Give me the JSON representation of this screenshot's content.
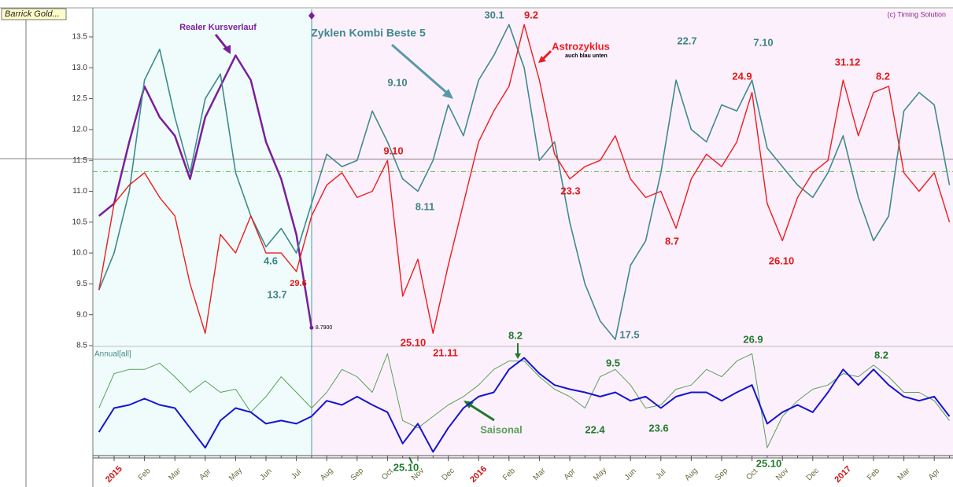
{
  "chart_data": {
    "type": "line",
    "title": "Barrick Gold...",
    "credit": "(c) Timing Solution",
    "panel_label": "Annual[all]",
    "categories": [
      null,
      "2015",
      null,
      "Feb",
      null,
      "Mar",
      null,
      "Apr",
      null,
      "May",
      null,
      "Jun",
      null,
      "Jul",
      null,
      "Aug",
      null,
      "Sep",
      null,
      "Oct",
      null,
      "Nov",
      null,
      "Dec",
      null,
      "2016",
      null,
      "Feb",
      null,
      "Mar",
      null,
      "Apr",
      null,
      "May",
      null,
      "Jun",
      null,
      "Jul",
      null,
      "Aug",
      null,
      "Sep",
      null,
      "Oct",
      null,
      "Nov",
      null,
      "Dec",
      null,
      "2017",
      null,
      "Feb",
      null,
      "Mar",
      null,
      "Apr",
      null
    ],
    "ylim": [
      8.5,
      13.5
    ],
    "yticks": [
      8.5,
      {
        "value": 9,
        "label": "9.0"
      },
      9.5,
      {
        "value": 10,
        "label": "10.0"
      },
      10.5,
      {
        "value": 11,
        "label": "11.0"
      },
      11.5,
      {
        "value": 12,
        "label": "12.0"
      },
      12.5,
      {
        "value": 13,
        "label": "13.0"
      },
      13.5
    ],
    "y2lim": [
      0,
      100
    ],
    "hlines": [
      {
        "value": 11.52,
        "color": "#8c7f7f",
        "dash": false
      },
      {
        "value": 11.32,
        "color": "#66bb55",
        "dash": true
      }
    ],
    "series": [
      {
        "name": "Realer Kursverlauf",
        "color": "#7a1f9a",
        "width": 2.5,
        "values": [
          10.6,
          10.8,
          11.8,
          12.7,
          12.2,
          11.9,
          11.2,
          12.2,
          12.7,
          13.2,
          12.8,
          11.8,
          11.2,
          10.3,
          8.79,
          null,
          null,
          null,
          null,
          null,
          null,
          null,
          null,
          null,
          null,
          null,
          null,
          null,
          null,
          null,
          null,
          null,
          null,
          null,
          null,
          null,
          null,
          null,
          null,
          null,
          null,
          null,
          null,
          null,
          null,
          null,
          null,
          null,
          null,
          null,
          null,
          null,
          null,
          null,
          null,
          null,
          null
        ],
        "value_labels": [
          null,
          null,
          null,
          null,
          null,
          null,
          null,
          null,
          null,
          null,
          null,
          null,
          null,
          null,
          "8.7900",
          null,
          null,
          null,
          null,
          null,
          null,
          null,
          null,
          null,
          null,
          null,
          null,
          null,
          null,
          null,
          null,
          null,
          null,
          null,
          null,
          null,
          null,
          null,
          null,
          null,
          null,
          null,
          null,
          null,
          null,
          null,
          null,
          null,
          null,
          null,
          null,
          null,
          null,
          null,
          null,
          null,
          null
        ]
      },
      {
        "name": "Zyklen Kombi Beste 5",
        "color": "#3f8a8c",
        "width": 1.6,
        "values": [
          9.4,
          10.0,
          11.0,
          12.8,
          13.3,
          12.2,
          11.3,
          12.5,
          12.9,
          11.3,
          10.6,
          10.1,
          10.4,
          10.0,
          10.8,
          11.6,
          11.4,
          11.5,
          12.3,
          11.8,
          11.2,
          11.0,
          11.5,
          12.4,
          11.9,
          12.8,
          13.2,
          13.7,
          13.0,
          11.5,
          11.8,
          10.5,
          9.5,
          8.9,
          8.6,
          9.8,
          10.2,
          11.3,
          12.8,
          12.0,
          11.8,
          12.4,
          12.3,
          12.8,
          11.7,
          11.4,
          11.1,
          10.9,
          11.3,
          11.9,
          10.9,
          10.2,
          10.6,
          12.3,
          12.6,
          12.4,
          11.1
        ]
      },
      {
        "name": "Astrozyklus",
        "color": "#ee1c1c",
        "width": 1.4,
        "values": [
          9.4,
          10.8,
          11.1,
          11.3,
          10.9,
          10.6,
          9.5,
          8.7,
          10.3,
          10.0,
          10.6,
          10.0,
          10.0,
          9.7,
          10.6,
          11.1,
          11.3,
          10.9,
          11.0,
          11.5,
          9.3,
          9.9,
          8.7,
          9.8,
          10.8,
          11.8,
          12.3,
          12.7,
          13.7,
          12.8,
          11.6,
          11.2,
          11.4,
          11.5,
          11.9,
          11.2,
          10.9,
          11.0,
          10.4,
          11.2,
          11.6,
          11.4,
          11.8,
          12.6,
          10.8,
          10.2,
          10.9,
          11.3,
          11.5,
          12.8,
          11.9,
          12.6,
          12.7,
          11.3,
          11.0,
          11.3,
          10.5
        ]
      },
      {
        "name": "Saisonal",
        "color": "#58a058",
        "width": 1,
        "axis": "y2",
        "values": [
          44,
          77,
          81,
          81,
          87,
          74,
          59,
          70,
          59,
          62,
          40,
          55,
          74,
          59,
          44,
          59,
          81,
          74,
          59,
          96,
          32,
          25,
          36,
          47,
          55,
          66,
          81,
          89,
          89,
          74,
          62,
          55,
          44,
          74,
          81,
          66,
          44,
          47,
          62,
          66,
          81,
          74,
          89,
          96,
          6,
          36,
          51,
          62,
          66,
          77,
          74,
          85,
          74,
          59,
          59,
          51,
          32
        ]
      },
      {
        "name": "Annual[all]",
        "color": "#1515d0",
        "width": 2,
        "axis": "y2",
        "values": [
          21,
          44,
          47,
          53,
          47,
          44,
          25,
          6,
          32,
          44,
          40,
          29,
          32,
          29,
          36,
          51,
          47,
          55,
          47,
          40,
          10,
          29,
          2,
          25,
          44,
          55,
          59,
          81,
          92,
          77,
          66,
          62,
          59,
          55,
          59,
          51,
          55,
          44,
          55,
          59,
          59,
          51,
          59,
          66,
          29,
          40,
          47,
          40,
          59,
          81,
          66,
          81,
          66,
          55,
          51,
          55,
          36
        ]
      }
    ],
    "annotations": [
      {
        "text": "4.6",
        "color": "#3f8485"
      },
      {
        "text": "13.7",
        "color": "#3f8485"
      },
      {
        "text": "9.10",
        "color": "#3f8485"
      },
      {
        "text": "8.11",
        "color": "#3f8485"
      },
      {
        "text": "30.1",
        "color": "#3f8485"
      },
      {
        "text": "17.5",
        "color": "#3f8485"
      },
      {
        "text": "22.7",
        "color": "#3f8485"
      },
      {
        "text": "7.10",
        "color": "#3f8485"
      },
      {
        "text": "29.6",
        "color": "#e01818"
      },
      {
        "text": "9.10",
        "color": "#e01818"
      },
      {
        "text": "25.10",
        "color": "#e01818"
      },
      {
        "text": "21.11",
        "color": "#e01818"
      },
      {
        "text": "9.2",
        "color": "#e01818"
      },
      {
        "text": "23.3",
        "color": "#e01818"
      },
      {
        "text": "8.7",
        "color": "#e01818"
      },
      {
        "text": "24.9",
        "color": "#e01818"
      },
      {
        "text": "26.10",
        "color": "#e01818"
      },
      {
        "text": "31.12",
        "color": "#e01818"
      },
      {
        "text": "8.2",
        "color": "#e01818"
      },
      {
        "text": "8.2",
        "color": "#1f7a2a"
      },
      {
        "text": "9.5",
        "color": "#1f7a2a"
      },
      {
        "text": "22.4",
        "color": "#1f7a2a"
      },
      {
        "text": "23.6",
        "color": "#1f7a2a"
      },
      {
        "text": "26.9",
        "color": "#1f7a2a"
      },
      {
        "text": "25.10",
        "color": "#1f7a2a"
      },
      {
        "text": "25.10",
        "color": "#1f7a2a"
      },
      {
        "text": "8.2",
        "color": "#1f7a2a"
      },
      {
        "text": "auch blau unten",
        "color": "#000000"
      }
    ]
  }
}
